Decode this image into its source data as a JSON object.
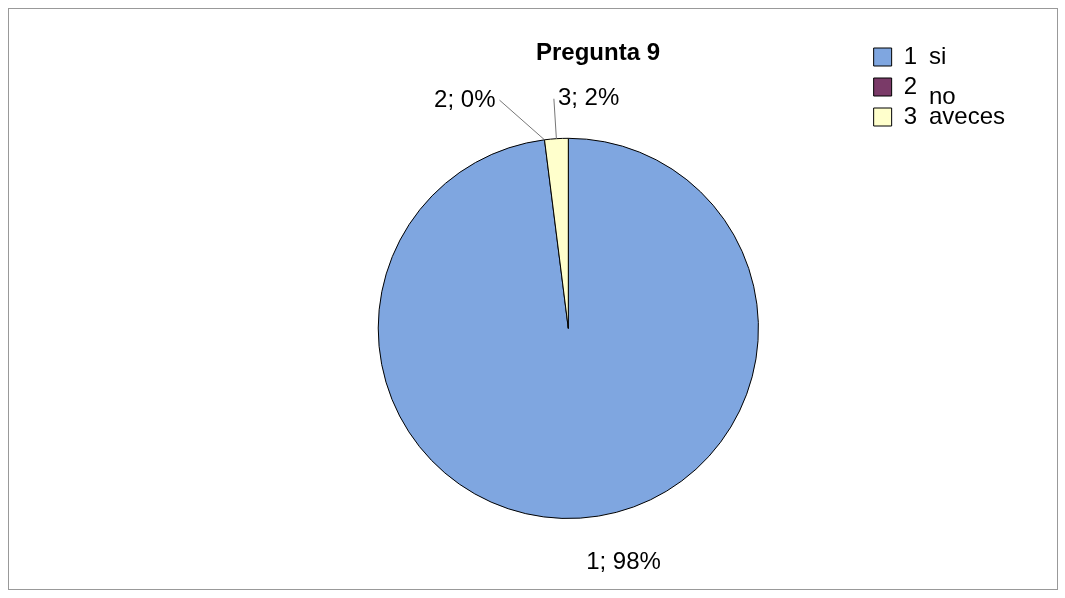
{
  "chart_data": {
    "type": "pie",
    "title": "Pregunta 9",
    "categories": [
      "1",
      "2",
      "3"
    ],
    "values": [
      98,
      0,
      2
    ],
    "colors": [
      "#7fa6e0",
      "#7a3a68",
      "#ffffcc"
    ],
    "value_labels": [
      "1; 98%",
      "2; 0%",
      "3; 2%"
    ],
    "legend": "top right",
    "annotations": [
      "si",
      "no",
      "aveces"
    ]
  }
}
